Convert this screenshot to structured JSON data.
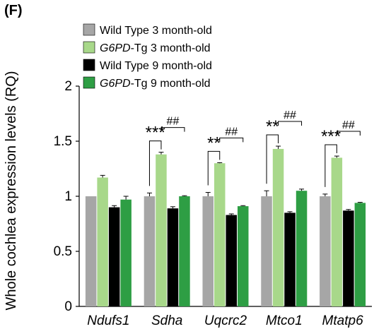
{
  "panel_label": "(F)",
  "chart_data": {
    "type": "bar",
    "ylabel": "Whole cochlea expression levels (RQ)",
    "xlabel": "",
    "ylim": [
      0,
      2
    ],
    "yticks": [
      "0",
      "0.5",
      "1",
      "1.5",
      "2"
    ],
    "categories": [
      "Ndufs1",
      "Sdha",
      "Uqcrc2",
      "Mtco1",
      "Mtatp6"
    ],
    "series": [
      {
        "name_prefix": "",
        "name_italic": "",
        "name_suffix": "Wild Type 3 month-old",
        "color": "#a6a6a6",
        "values": [
          1.0,
          1.0,
          1.0,
          1.0,
          1.0
        ],
        "errors": [
          0.0,
          0.03,
          0.035,
          0.05,
          0.02
        ]
      },
      {
        "name_prefix": "",
        "name_italic": "G6PD",
        "name_suffix": "-Tg 3 month-old",
        "color": "#a8d88a",
        "values": [
          1.17,
          1.38,
          1.3,
          1.43,
          1.35
        ],
        "errors": [
          0.02,
          0.02,
          0.005,
          0.025,
          0.015
        ]
      },
      {
        "name_prefix": "",
        "name_italic": "",
        "name_suffix": "Wild Type 9 month-old",
        "color": "#000000",
        "values": [
          0.9,
          0.89,
          0.83,
          0.85,
          0.87
        ],
        "errors": [
          0.015,
          0.015,
          0.01,
          0.01,
          0.01
        ]
      },
      {
        "name_prefix": "",
        "name_italic": "G6PD",
        "name_suffix": "-Tg 9 month-old",
        "color": "#2e9e44",
        "values": [
          0.97,
          1.0,
          0.91,
          1.05,
          0.94
        ],
        "errors": [
          0.03,
          0.005,
          0.005,
          0.015,
          0.005
        ]
      }
    ],
    "annotations": [
      {
        "category": 1,
        "pair": [
          0,
          1
        ],
        "text": "***"
      },
      {
        "category": 1,
        "pair": [
          1,
          3
        ],
        "text": "##"
      },
      {
        "category": 2,
        "pair": [
          0,
          1
        ],
        "text": "**"
      },
      {
        "category": 2,
        "pair": [
          1,
          3
        ],
        "text": "##"
      },
      {
        "category": 3,
        "pair": [
          0,
          1
        ],
        "text": "**"
      },
      {
        "category": 3,
        "pair": [
          1,
          3
        ],
        "text": "##"
      },
      {
        "category": 4,
        "pair": [
          0,
          1
        ],
        "text": "***"
      },
      {
        "category": 4,
        "pair": [
          1,
          3
        ],
        "text": "##"
      }
    ],
    "legend_position": "top-left",
    "grid": false
  }
}
